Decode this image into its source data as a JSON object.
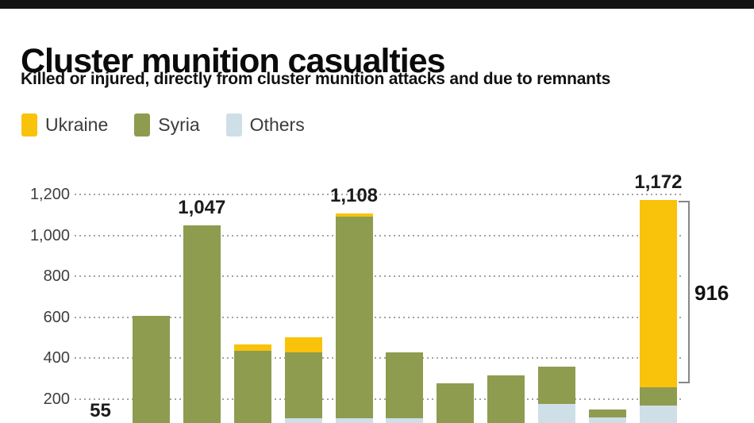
{
  "header": {
    "title": "Cluster munition casualties",
    "subtitle": "Killed or injured, directly from cluster munition attacks and due to remnants"
  },
  "legend": [
    {
      "label": "Ukraine",
      "color": "#F9C20B"
    },
    {
      "label": "Syria",
      "color": "#8E9C50"
    },
    {
      "label": "Others",
      "color": "#CEDFE8"
    }
  ],
  "chart_data": {
    "type": "bar",
    "stacked": true,
    "title": "Cluster munition casualties",
    "subtitle": "Killed or injured, directly from cluster munition attacks and due to remnants",
    "series_names": [
      "Ukraine",
      "Syria",
      "Others"
    ],
    "colors": {
      "Ukraine": "#F9C20B",
      "Syria": "#8E9C50",
      "Others": "#CEDFE8"
    },
    "x_axis": {
      "tick_labels_visible": false
    },
    "y_axis": {
      "ticks": [
        1200,
        1000,
        800,
        600,
        400,
        200
      ],
      "tick_labels": [
        "1,200",
        "1,000",
        "800",
        "600",
        "400",
        "200"
      ],
      "range": [
        0,
        1290
      ],
      "gridlines": "dotted",
      "note": "bottom of plot (0-line and x labels) cropped out of screenshot"
    },
    "bars": [
      {
        "label": "55",
        "total": 55,
        "ukraine": 0,
        "syria": 55,
        "others": 0
      },
      {
        "label": null,
        "total": 605,
        "ukraine": 0,
        "syria": 605,
        "others": 0
      },
      {
        "label": "1,047",
        "total": 1047,
        "ukraine": 0,
        "syria": 1047,
        "others": 0
      },
      {
        "label": null,
        "total": 468,
        "ukraine": 33,
        "syria": 435,
        "others": 0
      },
      {
        "label": null,
        "total": 500,
        "ukraine": 71,
        "syria": 323,
        "others": 106
      },
      {
        "label": "1,108",
        "total": 1108,
        "ukraine": 16,
        "syria": 987,
        "others": 105
      },
      {
        "label": null,
        "total": 426,
        "ukraine": 0,
        "syria": 321,
        "others": 105
      },
      {
        "label": null,
        "total": 275,
        "ukraine": 0,
        "syria": 275,
        "others": 0
      },
      {
        "label": null,
        "total": 316,
        "ukraine": 0,
        "syria": 316,
        "others": 0
      },
      {
        "label": null,
        "total": 359,
        "ukraine": 0,
        "syria": 185,
        "others": 174
      },
      {
        "label": null,
        "total": 148,
        "ukraine": 0,
        "syria": 38,
        "others": 110
      },
      {
        "label": "1,172",
        "total": 1172,
        "ukraine": 916,
        "syria": 88,
        "others": 168
      }
    ],
    "annotation": {
      "text": "916",
      "bar_index": 11,
      "series": "Ukraine"
    }
  }
}
